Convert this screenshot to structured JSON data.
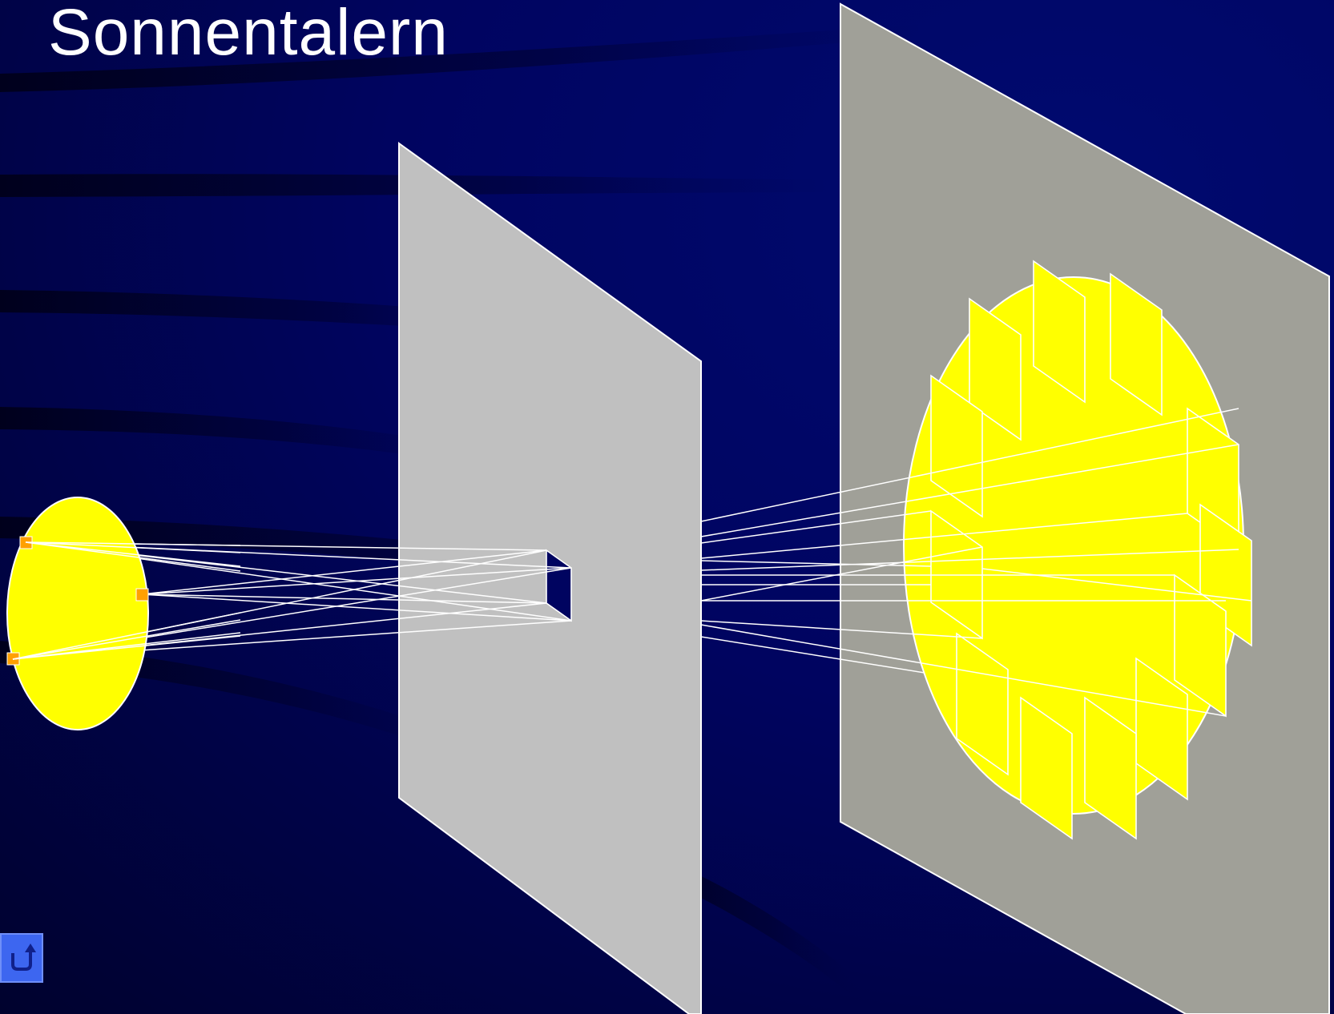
{
  "slide": {
    "title": "Sonnentalern"
  },
  "colors": {
    "background": "#00045e",
    "sun": "#ffff00",
    "source_points": "#ffa000",
    "aperture_screen": "#c0c0c0",
    "projection_screen": "#a0a098",
    "rays": "#ffffff",
    "back_button": "#3d66f0"
  },
  "diagram": {
    "elements": [
      "sun",
      "source-points",
      "aperture-screen",
      "square-aperture",
      "light-rays",
      "projection-screen",
      "sun-image",
      "projected-aperture-images"
    ]
  },
  "navigation": {
    "back_icon": "return-arrow-icon"
  }
}
